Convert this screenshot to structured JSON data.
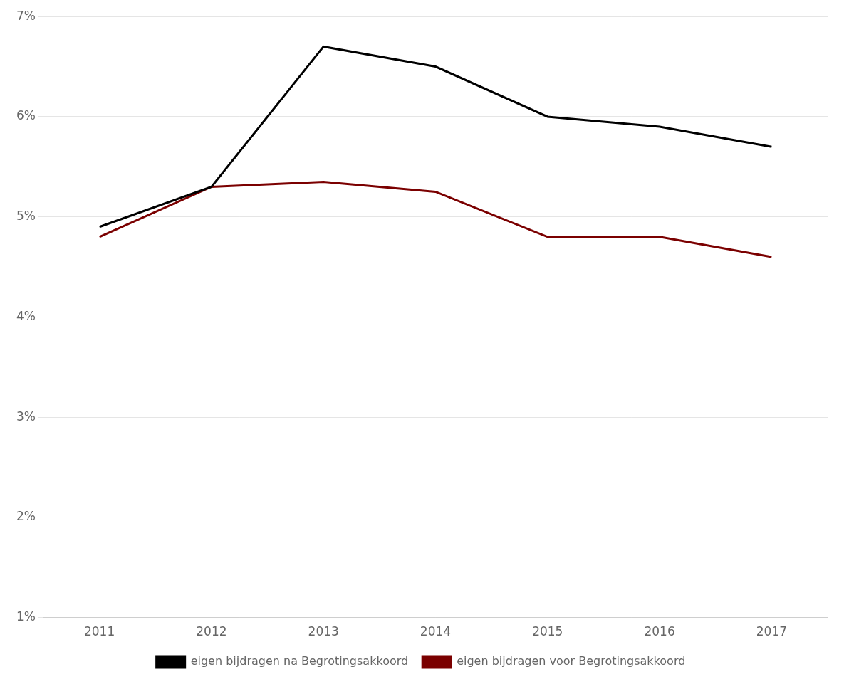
{
  "chart_data": {
    "type": "line",
    "x": [
      2011,
      2012,
      2013,
      2014,
      2015,
      2016,
      2017
    ],
    "series": [
      {
        "name": "eigen bijdragen na Begrotingsakkoord",
        "color": "#000000",
        "values": [
          0.049,
          0.053,
          0.067,
          0.065,
          0.06,
          0.059,
          0.057
        ]
      },
      {
        "name": "eigen bijdragen voor Begrotingsakkoord",
        "color": "#7B0000",
        "values": [
          0.048,
          0.053,
          0.0535,
          0.0525,
          0.048,
          0.048,
          0.046
        ]
      }
    ],
    "xlim": [
      2010.5,
      2017.5
    ],
    "xticks": [
      2011,
      2012,
      2013,
      2014,
      2015,
      2016,
      2017
    ],
    "ylim": [
      0.01,
      0.07
    ],
    "yticks": [
      {
        "value": 0.01,
        "label": "1%"
      },
      {
        "value": 0.02,
        "label": "2%"
      },
      {
        "value": 0.03,
        "label": "3%"
      },
      {
        "value": 0.04,
        "label": "4%"
      },
      {
        "value": 0.05,
        "label": "5%"
      },
      {
        "value": 0.06,
        "label": "6%"
      },
      {
        "value": 0.07,
        "label": "7%"
      }
    ],
    "grid": "y",
    "legend": "bottom"
  }
}
